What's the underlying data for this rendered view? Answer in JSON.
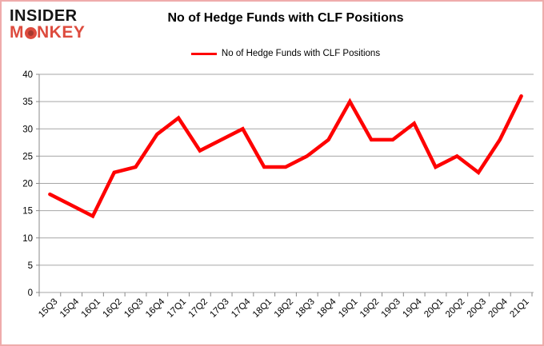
{
  "page": {
    "background": "#ffffff",
    "border_color": "#efabab"
  },
  "logo": {
    "line1": "INSIDER",
    "line2_pre": "M",
    "line2_post": "NKEY",
    "line1_color": "#151515",
    "line2_color": "#dd4b3e"
  },
  "header": {
    "title": "No of Hedge Funds with CLF Positions"
  },
  "legend": {
    "label": "No of Hedge Funds with CLF Positions",
    "swatch_color": "#fe0000"
  },
  "chart_data": {
    "type": "line",
    "title": "No of Hedge Funds with CLF Positions",
    "categories": [
      "15Q3",
      "15Q4",
      "16Q1",
      "16Q2",
      "16Q3",
      "16Q4",
      "17Q1",
      "17Q2",
      "17Q3",
      "17Q4",
      "18Q1",
      "18Q2",
      "18Q3",
      "18Q4",
      "19Q1",
      "19Q2",
      "19Q3",
      "19Q4",
      "20Q1",
      "20Q2",
      "20Q3",
      "20Q4",
      "21Q1"
    ],
    "series": [
      {
        "name": "No of Hedge Funds with CLF Positions",
        "color": "#fe0000",
        "values": [
          18,
          16,
          14,
          22,
          23,
          29,
          32,
          26,
          28,
          30,
          23,
          23,
          25,
          28,
          35,
          28,
          28,
          31,
          23,
          25,
          22,
          28,
          36
        ]
      }
    ],
    "xlabel": "",
    "ylabel": "",
    "ylim": [
      0,
      40
    ],
    "ytick_step": 5,
    "grid": true,
    "legend_position": "top",
    "gridline_color": "#a6a6a6",
    "axis_color": "#898989",
    "label_color": "#000000"
  }
}
